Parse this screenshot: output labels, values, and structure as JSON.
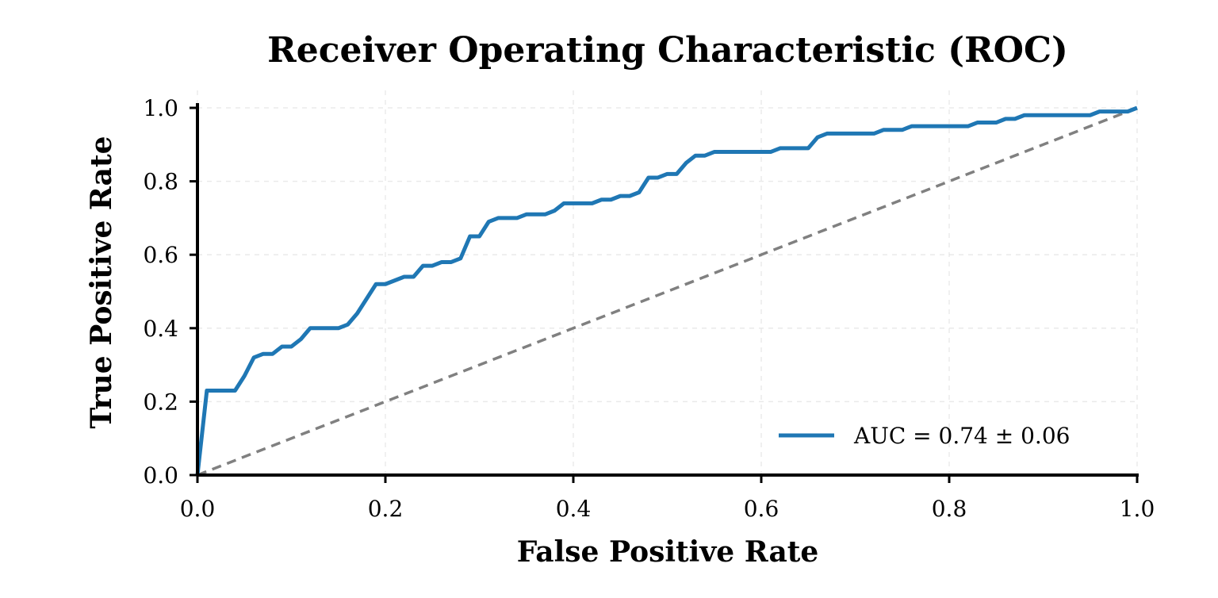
{
  "chart_data": {
    "type": "line",
    "title": "Receiver Operating Characteristic (ROC)",
    "xlabel": "False Positive Rate",
    "ylabel": "True Positive Rate",
    "xlim": [
      0.0,
      1.0
    ],
    "ylim": [
      0.0,
      1.0
    ],
    "x_ticks": [
      "0.0",
      "0.2",
      "0.4",
      "0.6",
      "0.8",
      "1.0"
    ],
    "y_ticks": [
      "0.0",
      "0.2",
      "0.4",
      "0.6",
      "0.8",
      "1.0"
    ],
    "grid": true,
    "legend_position": "lower-right",
    "series": [
      {
        "name": "AUC = 0.74 ± 0.06",
        "color": "#1f77b4",
        "style": "solid",
        "x": [
          0.0,
          0.01,
          0.02,
          0.03,
          0.04,
          0.05,
          0.06,
          0.07,
          0.08,
          0.09,
          0.1,
          0.11,
          0.12,
          0.13,
          0.14,
          0.15,
          0.16,
          0.17,
          0.18,
          0.19,
          0.2,
          0.21,
          0.22,
          0.23,
          0.24,
          0.25,
          0.26,
          0.27,
          0.28,
          0.29,
          0.3,
          0.31,
          0.32,
          0.33,
          0.34,
          0.35,
          0.36,
          0.37,
          0.38,
          0.39,
          0.4,
          0.41,
          0.42,
          0.43,
          0.44,
          0.45,
          0.46,
          0.47,
          0.48,
          0.49,
          0.5,
          0.51,
          0.52,
          0.53,
          0.54,
          0.55,
          0.56,
          0.57,
          0.58,
          0.59,
          0.6,
          0.61,
          0.62,
          0.63,
          0.64,
          0.65,
          0.66,
          0.67,
          0.68,
          0.69,
          0.7,
          0.71,
          0.72,
          0.73,
          0.74,
          0.75,
          0.76,
          0.77,
          0.78,
          0.79,
          0.8,
          0.81,
          0.82,
          0.83,
          0.84,
          0.85,
          0.86,
          0.87,
          0.88,
          0.89,
          0.9,
          0.91,
          0.92,
          0.93,
          0.94,
          0.95,
          0.96,
          0.97,
          0.98,
          0.99,
          1.0
        ],
        "y": [
          0.0,
          0.23,
          0.23,
          0.23,
          0.23,
          0.27,
          0.32,
          0.33,
          0.33,
          0.35,
          0.35,
          0.37,
          0.4,
          0.4,
          0.4,
          0.4,
          0.41,
          0.44,
          0.48,
          0.52,
          0.52,
          0.53,
          0.54,
          0.54,
          0.57,
          0.57,
          0.58,
          0.58,
          0.59,
          0.65,
          0.65,
          0.69,
          0.7,
          0.7,
          0.7,
          0.71,
          0.71,
          0.71,
          0.72,
          0.74,
          0.74,
          0.74,
          0.74,
          0.75,
          0.75,
          0.76,
          0.76,
          0.77,
          0.81,
          0.81,
          0.82,
          0.82,
          0.85,
          0.87,
          0.87,
          0.88,
          0.88,
          0.88,
          0.88,
          0.88,
          0.88,
          0.88,
          0.89,
          0.89,
          0.89,
          0.89,
          0.92,
          0.93,
          0.93,
          0.93,
          0.93,
          0.93,
          0.93,
          0.94,
          0.94,
          0.94,
          0.95,
          0.95,
          0.95,
          0.95,
          0.95,
          0.95,
          0.95,
          0.96,
          0.96,
          0.96,
          0.97,
          0.97,
          0.98,
          0.98,
          0.98,
          0.98,
          0.98,
          0.98,
          0.98,
          0.98,
          0.99,
          0.99,
          0.99,
          0.99,
          1.0
        ]
      },
      {
        "name": "",
        "color": "#808080",
        "style": "dashed",
        "x": [
          0.0,
          1.0
        ],
        "y": [
          0.0,
          1.0
        ]
      }
    ]
  }
}
